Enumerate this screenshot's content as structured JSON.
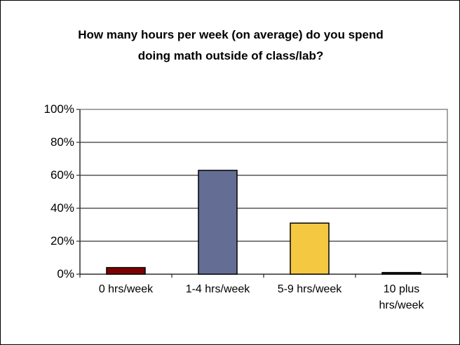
{
  "chart_data": {
    "type": "bar",
    "title": "How many hours per week (on average) do you spend doing math outside of class/lab?",
    "categories": [
      "0 hrs/week",
      "1-4 hrs/week",
      "5-9 hrs/week",
      "10 plus hrs/week"
    ],
    "values": [
      4,
      63,
      31,
      1
    ],
    "colors": [
      "#800000",
      "#646e94",
      "#f5c842",
      "#1a1a1a"
    ],
    "ylim": [
      0,
      100
    ],
    "yticks": [
      {
        "value": 0,
        "label": "0%"
      },
      {
        "value": 20,
        "label": "20%"
      },
      {
        "value": 40,
        "label": "40%"
      },
      {
        "value": 60,
        "label": "60%"
      },
      {
        "value": 80,
        "label": "80%"
      },
      {
        "value": 100,
        "label": "100%"
      }
    ],
    "grid": true
  }
}
